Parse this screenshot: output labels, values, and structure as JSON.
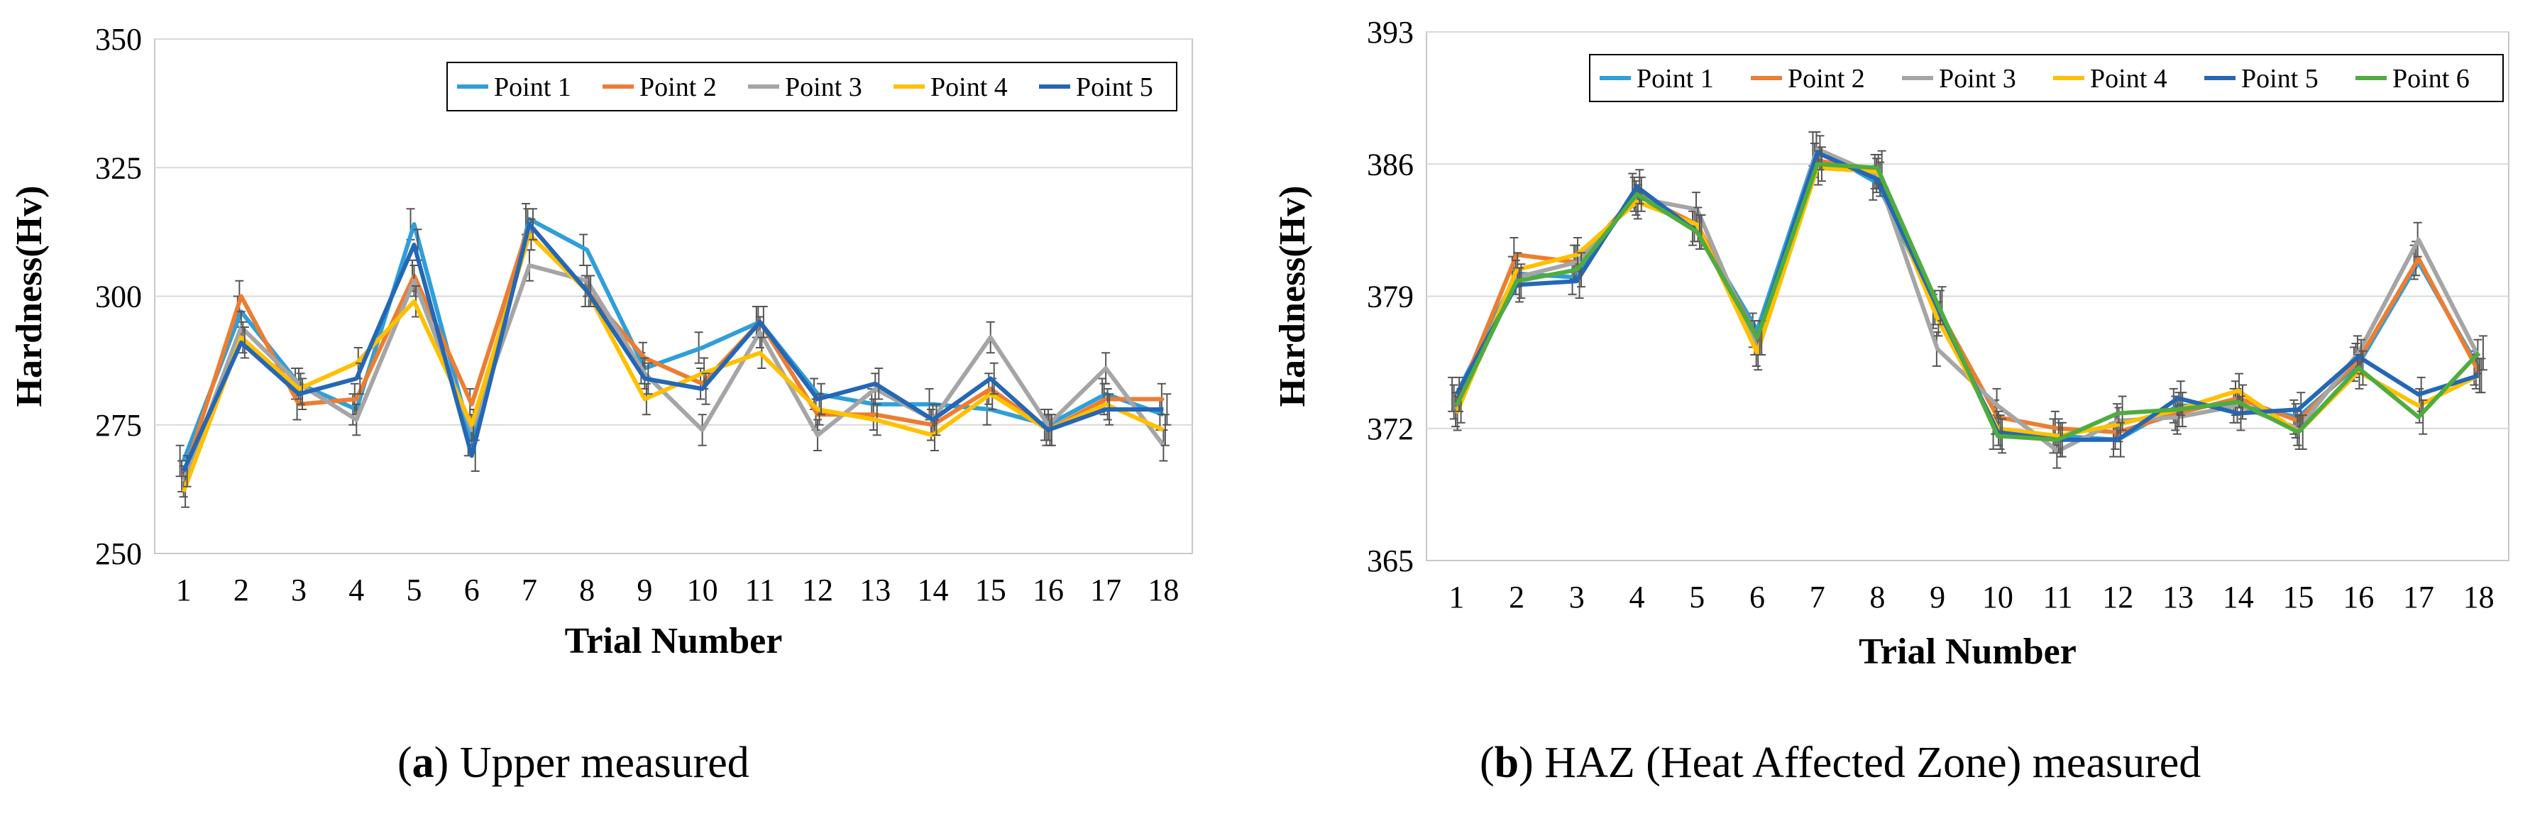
{
  "colors": {
    "Point 1": "#2f9fd8",
    "Point 2": "#ed7d31",
    "Point 3": "#a5a5a5",
    "Point 4": "#ffc000",
    "Point 5": "#2467b5",
    "Point 6": "#4fac3f",
    "grid": "#d9d9d9",
    "frame": "#c8c8c8",
    "errorbar": "#555555"
  },
  "captions": [
    {
      "label": "a",
      "open": "(",
      "close": ")",
      "text": " Upper measured"
    },
    {
      "label": "b",
      "open": "(",
      "close": ")",
      "text": " HAZ (Heat Affected Zone) measured"
    }
  ],
  "chart_data": [
    {
      "type": "line",
      "title": "",
      "xlabel": "Trial Number",
      "ylabel": "Hardness(Hv)",
      "ylim": [
        250,
        350
      ],
      "yticks": [
        "250",
        "275",
        "300",
        "325",
        "350"
      ],
      "categories": [
        "1",
        "2",
        "3",
        "4",
        "5",
        "6",
        "7",
        "8",
        "9",
        "10",
        "11",
        "12",
        "13",
        "14",
        "15",
        "16",
        "17",
        "18"
      ],
      "error": 3,
      "legend": "top-right",
      "grid": true,
      "series": [
        {
          "name": "Point 1",
          "values": [
            268,
            297,
            283,
            278,
            314,
            272,
            315,
            309,
            286,
            290,
            295,
            281,
            279,
            279,
            278,
            275,
            281,
            277
          ]
        },
        {
          "name": "Point 2",
          "values": [
            265,
            300,
            279,
            280,
            304,
            279,
            314,
            301,
            288,
            283,
            295,
            277,
            277,
            275,
            282,
            274,
            280,
            280
          ]
        },
        {
          "name": "Point 3",
          "values": [
            264,
            294,
            283,
            276,
            303,
            274,
            306,
            303,
            285,
            274,
            293,
            273,
            282,
            276,
            292,
            275,
            286,
            271
          ]
        },
        {
          "name": "Point 4",
          "values": [
            262,
            292,
            282,
            287,
            299,
            275,
            312,
            301,
            280,
            285,
            289,
            278,
            276,
            273,
            281,
            274,
            279,
            274
          ]
        },
        {
          "name": "Point 5",
          "values": [
            266,
            291,
            281,
            284,
            310,
            269,
            314,
            301,
            284,
            282,
            295,
            280,
            283,
            276,
            284,
            274,
            278,
            278
          ]
        }
      ]
    },
    {
      "type": "line",
      "title": "",
      "xlabel": "Trial Number",
      "ylabel": "Hardness(Hv)",
      "ylim": [
        365,
        393
      ],
      "yticks": [
        "365",
        "372",
        "379",
        "386",
        "393"
      ],
      "categories": [
        "1",
        "2",
        "3",
        "4",
        "5",
        "6",
        "7",
        "8",
        "9",
        "10",
        "11",
        "12",
        "13",
        "14",
        "15",
        "16",
        "17",
        "18"
      ],
      "error": 0.9,
      "legend": "top-right",
      "grid": true,
      "series": [
        {
          "name": "Point 1",
          "values": [
            373.8,
            380.2,
            380.0,
            384.6,
            382.6,
            377.2,
            386.8,
            385.0,
            378.2,
            371.8,
            371.6,
            371.4,
            373.2,
            373.2,
            372.6,
            375.4,
            380.8,
            375.2
          ]
        },
        {
          "name": "Point 2",
          "values": [
            373.4,
            381.2,
            380.8,
            384.4,
            382.8,
            376.8,
            386.2,
            385.6,
            378.4,
            372.6,
            372.0,
            371.8,
            372.8,
            373.6,
            372.4,
            375.6,
            381.0,
            375.0
          ]
        },
        {
          "name": "Point 3",
          "values": [
            373.0,
            380.0,
            380.8,
            384.2,
            383.6,
            376.2,
            386.8,
            385.4,
            376.2,
            373.2,
            370.8,
            372.4,
            372.6,
            373.2,
            372.0,
            376.0,
            382.0,
            375.8
          ]
        },
        {
          "name": "Point 4",
          "values": [
            372.8,
            380.4,
            381.2,
            384.0,
            382.8,
            376.0,
            385.8,
            385.6,
            377.8,
            372.0,
            371.6,
            372.2,
            373.0,
            374.0,
            371.8,
            375.0,
            373.2,
            374.8
          ]
        },
        {
          "name": "Point 5",
          "values": [
            373.8,
            379.6,
            379.8,
            384.8,
            382.4,
            376.8,
            386.6,
            385.2,
            378.4,
            371.8,
            371.4,
            371.4,
            373.6,
            372.8,
            373.0,
            375.8,
            373.8,
            374.8
          ]
        },
        {
          "name": "Point 6",
          "values": [
            373.2,
            379.8,
            380.4,
            384.4,
            382.4,
            376.8,
            386.0,
            385.8,
            378.6,
            371.6,
            371.4,
            372.8,
            373.0,
            373.4,
            371.8,
            375.2,
            372.6,
            376.0
          ]
        }
      ]
    }
  ]
}
